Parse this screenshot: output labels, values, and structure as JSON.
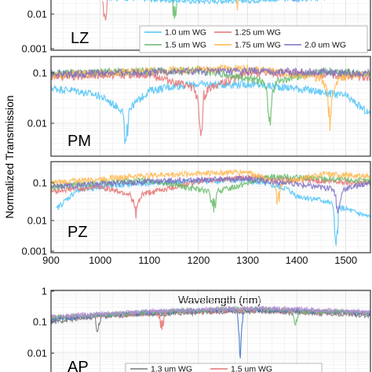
{
  "chart_data": {
    "type": "line",
    "xlabel": "Wavelength (nm)",
    "ylabel": "Normalized Transmission",
    "xlim": [
      900,
      1550
    ],
    "x_ticks": [
      "900",
      "1000",
      "1100",
      "1200",
      "1300",
      "1400",
      "1500"
    ],
    "y_scale": "log",
    "grid": true,
    "panels": [
      {
        "label": "LZ",
        "y_ticks": [
          "0.01",
          "0.001"
        ],
        "ylim": [
          0.001,
          0.05
        ],
        "legend": {
          "placement": "bottom-right",
          "entries": [
            {
              "name": "1.0 um WG",
              "color": "#4fc3f7"
            },
            {
              "name": "1.25 um WG",
              "color": "#e57373"
            },
            {
              "name": "1.5 um WG",
              "color": "#66bb6a"
            },
            {
              "name": "1.75 um WG",
              "color": "#ffb74d"
            },
            {
              "name": "2.0 um WG",
              "color": "#7e6fc4"
            }
          ]
        },
        "series": [
          {
            "name": "1.0 um WG",
            "color": "#4fc3f7",
            "x": [
              900,
              1000,
              1100,
              1200,
              1300,
              1380,
              1400,
              1450,
              1500,
              1550
            ],
            "values": [
              0.04,
              0.032,
              0.027,
              0.024,
              0.025,
              0.028,
              0.027,
              0.03,
              0.033,
              0.035
            ]
          },
          {
            "name": "1.25 um WG",
            "color": "#e57373",
            "x": [
              1005,
              1010,
              1015
            ],
            "values": [
              0.04,
              0.011,
              0.04
            ],
            "dip": {
              "center": 1010,
              "min": 0.008
            }
          },
          {
            "name": "1.5 um WG",
            "color": "#66bb6a",
            "x": [
              1145,
              1152,
              1158
            ],
            "values": [
              0.04,
              0.011,
              0.04
            ],
            "dip": {
              "center": 1152,
              "min": 0.011
            }
          },
          {
            "name": "1.75 um WG",
            "color": "#ffb74d",
            "x": [
              1278,
              1280,
              1282
            ],
            "values": [
              0.04,
              0.02,
              0.04
            ],
            "dip": {
              "center": 1280,
              "min": 0.02
            }
          },
          {
            "name": "2.0 um WG",
            "color": "#7e6fc4",
            "x": [
              1392,
              1395,
              1398
            ],
            "values": [
              0.04,
              0.025,
              0.04
            ],
            "dip": {
              "center": 1395,
              "min": 0.025
            }
          }
        ]
      },
      {
        "label": "PM",
        "y_ticks": [
          "0.1",
          "0.01"
        ],
        "ylim": [
          0.0025,
          0.2
        ],
        "series": [
          {
            "name": "1.0 um WG",
            "color": "#4fc3f7",
            "x": [
              900,
              950,
              1000,
              1040,
              1050,
              1060,
              1100,
              1150,
              1200,
              1300,
              1400,
              1500,
              1550
            ],
            "values": [
              0.05,
              0.045,
              0.035,
              0.02,
              0.016,
              0.02,
              0.045,
              0.055,
              0.06,
              0.06,
              0.05,
              0.035,
              0.015
            ],
            "dip": {
              "center": 1052,
              "min": 0.003
            }
          },
          {
            "name": "1.25 um WG",
            "color": "#e57373",
            "x": [
              900,
              1000,
              1100,
              1190,
              1205,
              1220,
              1300,
              1400,
              1500,
              1550
            ],
            "values": [
              0.085,
              0.09,
              0.095,
              0.05,
              0.022,
              0.05,
              0.1,
              0.1,
              0.09,
              0.08
            ],
            "dip": {
              "center": 1205,
              "min": 0.005
            }
          },
          {
            "name": "1.5 um WG",
            "color": "#66bb6a",
            "x": [
              900,
              1000,
              1100,
              1200,
              1330,
              1345,
              1360,
              1450,
              1550
            ],
            "values": [
              0.1,
              0.105,
              0.11,
              0.115,
              0.07,
              0.03,
              0.07,
              0.11,
              0.1
            ],
            "dip": {
              "center": 1345,
              "min": 0.012
            }
          },
          {
            "name": "1.75 um WG",
            "color": "#ffb74d",
            "x": [
              900,
              1000,
              1100,
              1200,
              1300,
              1450,
              1468,
              1485,
              1550
            ],
            "values": [
              0.09,
              0.1,
              0.11,
              0.12,
              0.125,
              0.08,
              0.035,
              0.08,
              0.1
            ],
            "dip": {
              "center": 1468,
              "min": 0.012
            }
          },
          {
            "name": "2.0 um WG",
            "color": "#7e6fc4",
            "x": [
              900,
              1100,
              1300,
              1550
            ],
            "values": [
              0.095,
              0.105,
              0.11,
              0.1
            ]
          }
        ]
      },
      {
        "label": "PZ",
        "y_ticks": [
          "0.1",
          "0.01",
          "0.001"
        ],
        "ylim": [
          0.001,
          0.2
        ],
        "series": [
          {
            "name": "1.0 um WG",
            "color": "#4fc3f7",
            "x": [
              910,
              950,
              1000,
              1100,
              1200,
              1300,
              1380,
              1400,
              1450,
              1500,
              1550
            ],
            "values": [
              0.02,
              0.06,
              0.08,
              0.1,
              0.11,
              0.12,
              0.07,
              0.045,
              0.035,
              0.02,
              0.012
            ],
            "dip": {
              "center": 1480,
              "min": 0.0015
            }
          },
          {
            "name": "1.25 um WG",
            "color": "#e57373",
            "x": [
              900,
              1000,
              1060,
              1073,
              1085,
              1200,
              1300,
              1400,
              1550
            ],
            "values": [
              0.06,
              0.08,
              0.05,
              0.02,
              0.05,
              0.11,
              0.14,
              0.12,
              0.1
            ],
            "dip": {
              "center": 1073,
              "min": 0.02
            }
          },
          {
            "name": "1.5 um WG",
            "color": "#66bb6a",
            "x": [
              900,
              1000,
              1100,
              1220,
              1230,
              1240,
              1350,
              1450,
              1550
            ],
            "values": [
              0.08,
              0.1,
              0.12,
              0.06,
              0.025,
              0.06,
              0.15,
              0.13,
              0.11
            ],
            "dip": {
              "center": 1230,
              "min": 0.025
            }
          },
          {
            "name": "1.75 um WG",
            "color": "#ffb74d",
            "x": [
              900,
              1000,
              1100,
              1200,
              1300,
              1355,
              1362,
              1370,
              1450,
              1550
            ],
            "values": [
              0.1,
              0.13,
              0.16,
              0.18,
              0.2,
              0.1,
              0.045,
              0.1,
              0.17,
              0.15
            ],
            "dip": {
              "center": 1362,
              "min": 0.04
            }
          },
          {
            "name": "2.0 um WG",
            "color": "#7e6fc4",
            "x": [
              900,
              1100,
              1300,
              1475,
              1485,
              1495,
              1550
            ],
            "values": [
              0.08,
              0.11,
              0.13,
              0.07,
              0.025,
              0.07,
              0.1
            ],
            "dip": {
              "center": 1485,
              "min": 0.025
            }
          }
        ]
      },
      {
        "label": "AP",
        "y_ticks": [
          "1",
          "0.1",
          "0.01"
        ],
        "ylim": [
          0.004,
          1
        ],
        "legend": {
          "placement": "bottom-right",
          "entries": [
            {
              "name": "1.3 um WG",
              "color": "#757575"
            },
            {
              "name": "1.5 um WG",
              "color": "#e57373"
            }
          ]
        },
        "series": [
          {
            "name": "1.3 um WG",
            "color": "#757575",
            "x": [
              900,
              1000,
              1100,
              1200,
              1300,
              1400,
              1500,
              1550
            ],
            "values": [
              0.1,
              0.15,
              0.18,
              0.2,
              0.22,
              0.2,
              0.18,
              0.16
            ],
            "dip": {
              "center": 995,
              "min": 0.04
            }
          },
          {
            "name": "1.5 um WG",
            "color": "#e57373",
            "x": [
              900,
              1000,
              1100,
              1200,
              1300,
              1400,
              1500,
              1550
            ],
            "values": [
              0.13,
              0.16,
              0.19,
              0.22,
              0.25,
              0.22,
              0.2,
              0.18
            ],
            "dip": {
              "center": 1125,
              "min": 0.06
            }
          },
          {
            "name": "series-blue",
            "color": "#3a6fc9",
            "x": [
              900,
              1000,
              1100,
              1200,
              1300,
              1400,
              1500,
              1550
            ],
            "values": [
              0.12,
              0.16,
              0.2,
              0.23,
              0.25,
              0.23,
              0.2,
              0.18
            ],
            "dip": {
              "center": 1285,
              "min": 0.008
            }
          },
          {
            "name": "series-green",
            "color": "#66bb6a",
            "x": [
              900,
              1000,
              1100,
              1200,
              1300,
              1400,
              1500,
              1550
            ],
            "values": [
              0.14,
              0.17,
              0.21,
              0.24,
              0.27,
              0.24,
              0.21,
              0.19
            ],
            "dip": {
              "center": 1397,
              "min": 0.05
            }
          },
          {
            "name": "series-purple",
            "color": "#b98bd9",
            "x": [
              900,
              1000,
              1100,
              1200,
              1300,
              1400,
              1500,
              1550
            ],
            "values": [
              0.15,
              0.18,
              0.22,
              0.25,
              0.28,
              0.26,
              0.22,
              0.2
            ]
          }
        ]
      }
    ]
  }
}
